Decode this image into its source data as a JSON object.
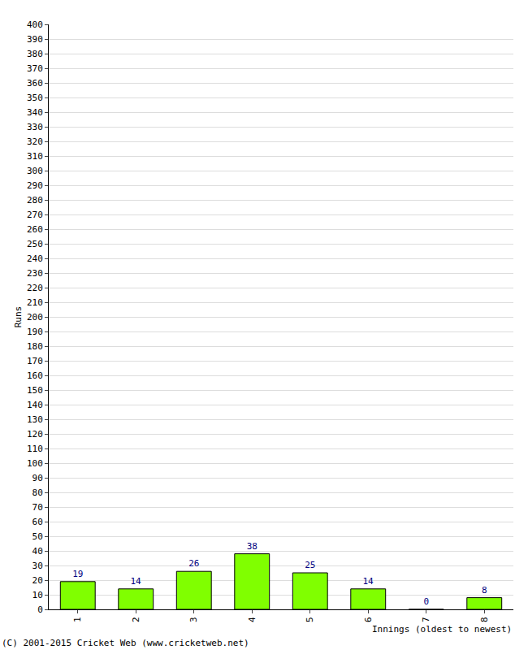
{
  "chart_data": {
    "type": "bar",
    "categories": [
      "1",
      "2",
      "3",
      "4",
      "5",
      "6",
      "7",
      "8"
    ],
    "values": [
      19,
      14,
      26,
      38,
      25,
      14,
      0,
      8
    ],
    "color": "#80ff00",
    "ylim": [
      0,
      400
    ],
    "yticks": [
      0,
      10,
      20,
      30,
      40,
      50,
      60,
      70,
      80,
      90,
      100,
      110,
      120,
      130,
      140,
      150,
      160,
      170,
      180,
      190,
      200,
      210,
      220,
      230,
      240,
      250,
      260,
      270,
      280,
      290,
      300,
      310,
      320,
      330,
      340,
      350,
      360,
      370,
      380,
      390,
      400
    ],
    "grid": true,
    "data_labels": true,
    "x_label": "Innings (oldest to newest)",
    "y_label": "Runs",
    "annotations": [
      "(C) 2001-2015 Cricket Web (www.cricketweb.net)"
    ]
  }
}
